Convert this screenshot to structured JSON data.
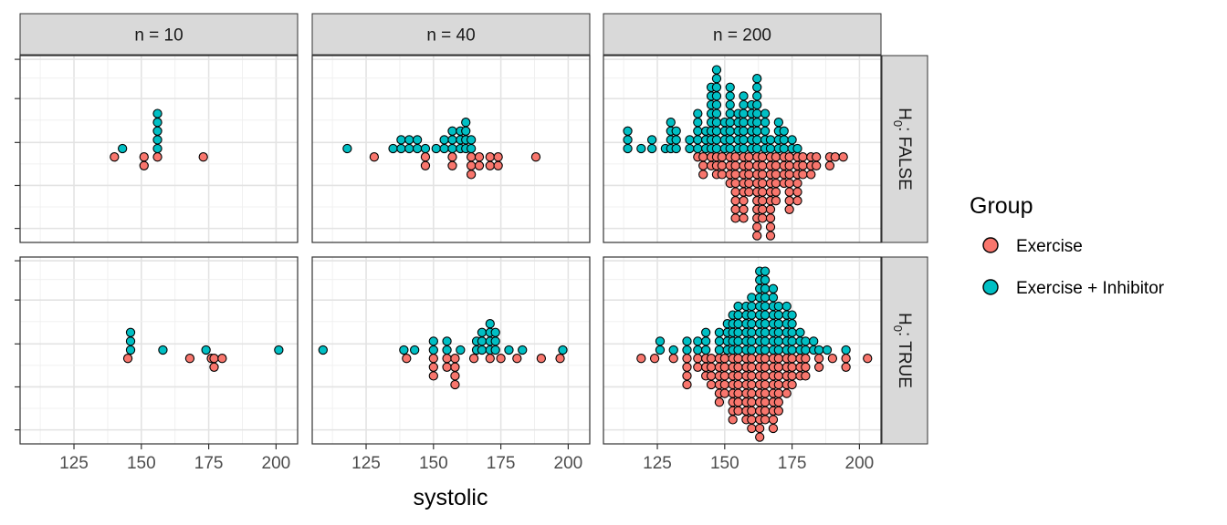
{
  "chart_data": {
    "type": "scatter",
    "subtype": "faceted dot plot",
    "xlabel": "systolic",
    "ylabel": "",
    "xlim": [
      105,
      208
    ],
    "xticks": [
      125,
      150,
      175,
      200
    ],
    "y_tick_labels_shown": false,
    "grid": true,
    "legend": {
      "title": "Group",
      "position": "right",
      "entries": [
        {
          "name": "Exercise",
          "color": "#F8766D"
        },
        {
          "name": "Exercise + Inhibitor",
          "color": "#00BFC4"
        }
      ]
    },
    "column_facets": [
      "n = 10",
      "n = 40",
      "n = 200"
    ],
    "row_facets": [
      {
        "label_base": "H",
        "label_sub": "0",
        "label_rest": ": FALSE"
      },
      {
        "label_base": "H",
        "label_sub": "0",
        "label_rest": ": TRUE"
      }
    ],
    "panels": [
      {
        "col": 0,
        "row": 0,
        "exercise_inhibitor": [
          {
            "x": 143,
            "count": 1
          },
          {
            "x": 156,
            "count": 5
          }
        ],
        "exercise": [
          {
            "x": 140,
            "count": 1
          },
          {
            "x": 151,
            "count": 2
          },
          {
            "x": 156,
            "count": 1
          },
          {
            "x": 173,
            "count": 1
          }
        ]
      },
      {
        "col": 1,
        "row": 0,
        "exercise_inhibitor": [
          {
            "x": 118,
            "count": 1
          },
          {
            "x": 135,
            "count": 1
          },
          {
            "x": 138,
            "count": 2
          },
          {
            "x": 141,
            "count": 2
          },
          {
            "x": 144,
            "count": 2
          },
          {
            "x": 147,
            "count": 1
          },
          {
            "x": 151,
            "count": 1
          },
          {
            "x": 154,
            "count": 2
          },
          {
            "x": 157,
            "count": 3
          },
          {
            "x": 160,
            "count": 3
          },
          {
            "x": 162,
            "count": 4
          },
          {
            "x": 164,
            "count": 2
          }
        ],
        "exercise": [
          {
            "x": 128,
            "count": 1
          },
          {
            "x": 147,
            "count": 2
          },
          {
            "x": 157,
            "count": 2
          },
          {
            "x": 164,
            "count": 3
          },
          {
            "x": 167,
            "count": 2
          },
          {
            "x": 171,
            "count": 2
          },
          {
            "x": 174,
            "count": 2
          },
          {
            "x": 188,
            "count": 1
          }
        ]
      },
      {
        "col": 2,
        "row": 0,
        "exercise_inhibitor": [
          {
            "x": 114,
            "count": 3
          },
          {
            "x": 119,
            "count": 1
          },
          {
            "x": 123,
            "count": 2
          },
          {
            "x": 128,
            "count": 1
          },
          {
            "x": 130,
            "count": 4
          },
          {
            "x": 132,
            "count": 3
          },
          {
            "x": 137,
            "count": 2
          },
          {
            "x": 140,
            "count": 5
          },
          {
            "x": 143,
            "count": 3
          },
          {
            "x": 145,
            "count": 8
          },
          {
            "x": 147,
            "count": 10
          },
          {
            "x": 150,
            "count": 4
          },
          {
            "x": 152,
            "count": 8
          },
          {
            "x": 155,
            "count": 5
          },
          {
            "x": 157,
            "count": 7
          },
          {
            "x": 160,
            "count": 6
          },
          {
            "x": 162,
            "count": 9
          },
          {
            "x": 165,
            "count": 5
          },
          {
            "x": 167,
            "count": 2
          },
          {
            "x": 170,
            "count": 4
          },
          {
            "x": 172,
            "count": 3
          },
          {
            "x": 175,
            "count": 2
          },
          {
            "x": 177,
            "count": 1
          }
        ],
        "exercise": [
          {
            "x": 140,
            "count": 1
          },
          {
            "x": 142,
            "count": 3
          },
          {
            "x": 145,
            "count": 2
          },
          {
            "x": 147,
            "count": 3
          },
          {
            "x": 149,
            "count": 3
          },
          {
            "x": 152,
            "count": 4
          },
          {
            "x": 154,
            "count": 8
          },
          {
            "x": 157,
            "count": 8
          },
          {
            "x": 159,
            "count": 5
          },
          {
            "x": 162,
            "count": 10
          },
          {
            "x": 164,
            "count": 8
          },
          {
            "x": 167,
            "count": 10
          },
          {
            "x": 169,
            "count": 6
          },
          {
            "x": 172,
            "count": 4
          },
          {
            "x": 174,
            "count": 7
          },
          {
            "x": 177,
            "count": 6
          },
          {
            "x": 179,
            "count": 3
          },
          {
            "x": 182,
            "count": 3
          },
          {
            "x": 184,
            "count": 2
          },
          {
            "x": 189,
            "count": 2
          },
          {
            "x": 191,
            "count": 1
          },
          {
            "x": 194,
            "count": 1
          }
        ]
      },
      {
        "col": 0,
        "row": 1,
        "exercise_inhibitor": [
          {
            "x": 146,
            "count": 3
          },
          {
            "x": 158,
            "count": 1
          },
          {
            "x": 174,
            "count": 1
          },
          {
            "x": 201,
            "count": 1
          }
        ],
        "exercise": [
          {
            "x": 145,
            "count": 1
          },
          {
            "x": 168,
            "count": 1
          },
          {
            "x": 176,
            "count": 1
          },
          {
            "x": 177,
            "count": 2
          },
          {
            "x": 180,
            "count": 1
          }
        ]
      },
      {
        "col": 1,
        "row": 1,
        "exercise_inhibitor": [
          {
            "x": 109,
            "count": 1
          },
          {
            "x": 139,
            "count": 1
          },
          {
            "x": 143,
            "count": 1
          },
          {
            "x": 150,
            "count": 2
          },
          {
            "x": 155,
            "count": 2
          },
          {
            "x": 160,
            "count": 1
          },
          {
            "x": 166,
            "count": 2
          },
          {
            "x": 168,
            "count": 3
          },
          {
            "x": 171,
            "count": 4
          },
          {
            "x": 173,
            "count": 3
          },
          {
            "x": 178,
            "count": 1
          },
          {
            "x": 183,
            "count": 1
          },
          {
            "x": 198,
            "count": 1
          }
        ],
        "exercise": [
          {
            "x": 140,
            "count": 1
          },
          {
            "x": 150,
            "count": 3
          },
          {
            "x": 155,
            "count": 2
          },
          {
            "x": 158,
            "count": 4
          },
          {
            "x": 165,
            "count": 1
          },
          {
            "x": 171,
            "count": 1
          },
          {
            "x": 175,
            "count": 1
          },
          {
            "x": 181,
            "count": 1
          },
          {
            "x": 190,
            "count": 1
          },
          {
            "x": 197,
            "count": 1
          }
        ]
      },
      {
        "col": 2,
        "row": 1,
        "exercise_inhibitor": [
          {
            "x": 126,
            "count": 2
          },
          {
            "x": 131,
            "count": 1
          },
          {
            "x": 136,
            "count": 2
          },
          {
            "x": 140,
            "count": 2
          },
          {
            "x": 143,
            "count": 3
          },
          {
            "x": 148,
            "count": 3
          },
          {
            "x": 151,
            "count": 4
          },
          {
            "x": 153,
            "count": 5
          },
          {
            "x": 155,
            "count": 6
          },
          {
            "x": 158,
            "count": 6
          },
          {
            "x": 160,
            "count": 7
          },
          {
            "x": 163,
            "count": 10
          },
          {
            "x": 165,
            "count": 10
          },
          {
            "x": 168,
            "count": 8
          },
          {
            "x": 170,
            "count": 6
          },
          {
            "x": 173,
            "count": 6
          },
          {
            "x": 175,
            "count": 5
          },
          {
            "x": 178,
            "count": 3
          },
          {
            "x": 180,
            "count": 2
          },
          {
            "x": 183,
            "count": 2
          },
          {
            "x": 185,
            "count": 1
          },
          {
            "x": 188,
            "count": 1
          },
          {
            "x": 195,
            "count": 1
          }
        ],
        "exercise": [
          {
            "x": 119,
            "count": 1
          },
          {
            "x": 124,
            "count": 1
          },
          {
            "x": 131,
            "count": 1
          },
          {
            "x": 136,
            "count": 4
          },
          {
            "x": 140,
            "count": 2
          },
          {
            "x": 143,
            "count": 3
          },
          {
            "x": 145,
            "count": 4
          },
          {
            "x": 148,
            "count": 6
          },
          {
            "x": 150,
            "count": 5
          },
          {
            "x": 153,
            "count": 8
          },
          {
            "x": 155,
            "count": 7
          },
          {
            "x": 158,
            "count": 8
          },
          {
            "x": 160,
            "count": 9
          },
          {
            "x": 163,
            "count": 10
          },
          {
            "x": 165,
            "count": 8
          },
          {
            "x": 168,
            "count": 9
          },
          {
            "x": 170,
            "count": 7
          },
          {
            "x": 173,
            "count": 5
          },
          {
            "x": 175,
            "count": 4
          },
          {
            "x": 178,
            "count": 3
          },
          {
            "x": 180,
            "count": 3
          },
          {
            "x": 185,
            "count": 2
          },
          {
            "x": 190,
            "count": 1
          },
          {
            "x": 195,
            "count": 2
          },
          {
            "x": 203,
            "count": 1
          }
        ]
      }
    ]
  }
}
